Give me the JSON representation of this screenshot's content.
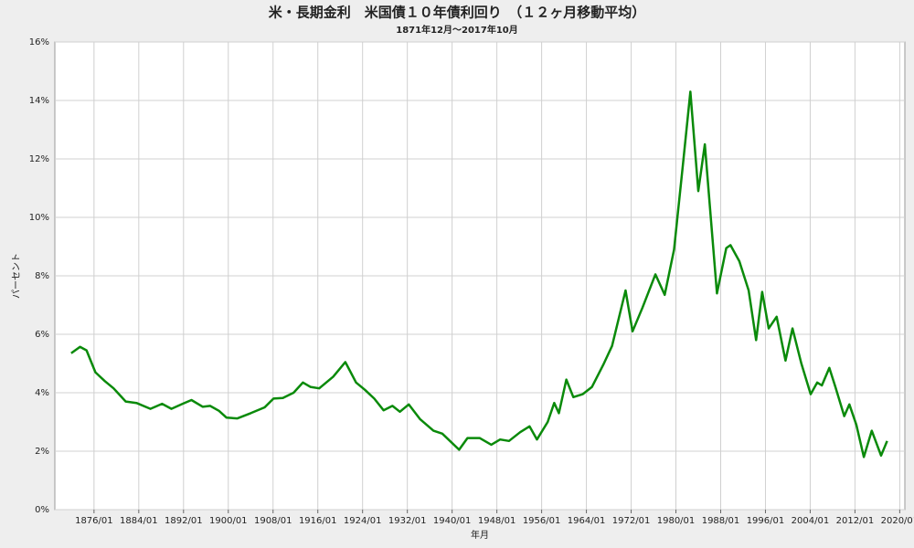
{
  "chart_data": {
    "type": "line",
    "title": "米・長期金利　米国債１０年債利回り　（１２ヶ月移動平均）",
    "subtitle": "1871年12月～2017年10月",
    "x_label": "年月",
    "y_label": "パーセント",
    "color": "#0a8a0a",
    "grid": true,
    "x": [
      "1871/12",
      "1873/07",
      "1874/09",
      "1876/04",
      "1877/12",
      "1879/07",
      "1881/09",
      "1883/08",
      "1886/02",
      "1888/03",
      "1889/11",
      "1891/11",
      "1893/06",
      "1895/06",
      "1896/10",
      "1898/05",
      "1899/09",
      "1901/08",
      "1904/01",
      "1906/07",
      "1908/02",
      "1909/10",
      "1911/09",
      "1913/05",
      "1914/09",
      "1916/04",
      "1918/10",
      "1920/12",
      "1922/11",
      "1924/06",
      "1926/02",
      "1927/10",
      "1929/05",
      "1930/09",
      "1932/04",
      "1934/04",
      "1936/09",
      "1938/04",
      "1941/04",
      "1942/10",
      "1944/12",
      "1947/01",
      "1948/08",
      "1950/03",
      "1952/03",
      "1953/11",
      "1955/03",
      "1957/02",
      "1958/04",
      "1959/02",
      "1960/06",
      "1961/09",
      "1963/05",
      "1965/01",
      "1967/01",
      "1968/08",
      "1971/01",
      "1972/04",
      "1974/01",
      "1976/05",
      "1978/01",
      "1979/09",
      "1981/04",
      "1982/08",
      "1984/01",
      "1985/03",
      "1987/05",
      "1989/01",
      "1989/10",
      "1991/05",
      "1993/01",
      "1994/05",
      "1995/06",
      "1996/08",
      "1998/01",
      "1999/08",
      "2000/11",
      "2002/06",
      "2004/02",
      "2005/04",
      "2006/02",
      "2007/06",
      "2008/07",
      "2010/02",
      "2011/01",
      "2012/04",
      "2013/08",
      "2015/01",
      "2016/09",
      "2017/10"
    ],
    "values": [
      5.35,
      5.57,
      5.45,
      4.7,
      4.4,
      4.15,
      3.7,
      3.65,
      3.45,
      3.62,
      3.45,
      3.62,
      3.75,
      3.52,
      3.55,
      3.38,
      3.15,
      3.12,
      3.3,
      3.5,
      3.8,
      3.82,
      4.0,
      4.35,
      4.2,
      4.15,
      4.55,
      5.05,
      4.35,
      4.1,
      3.8,
      3.4,
      3.55,
      3.35,
      3.6,
      3.1,
      2.7,
      2.6,
      2.05,
      2.45,
      2.45,
      2.22,
      2.4,
      2.35,
      2.65,
      2.85,
      2.4,
      3.0,
      3.65,
      3.3,
      4.45,
      3.85,
      3.95,
      4.2,
      4.95,
      5.6,
      7.5,
      6.1,
      6.9,
      8.05,
      7.35,
      8.9,
      11.8,
      14.3,
      10.9,
      12.5,
      7.4,
      8.95,
      9.05,
      8.5,
      7.5,
      5.8,
      7.45,
      6.2,
      6.6,
      5.1,
      6.2,
      5.0,
      3.95,
      4.35,
      4.25,
      4.85,
      4.2,
      3.2,
      3.6,
      2.9,
      1.8,
      2.7,
      1.85,
      2.35
    ],
    "xlim": [
      "1869/01",
      "2020/12"
    ],
    "xticks": [
      "1876/01",
      "1884/01",
      "1892/01",
      "1900/01",
      "1908/01",
      "1916/01",
      "1924/01",
      "1932/01",
      "1940/01",
      "1948/01",
      "1956/01",
      "1964/01",
      "1972/01",
      "1980/01",
      "1988/01",
      "1996/01",
      "2004/01",
      "2012/01",
      "2020/01"
    ],
    "ylim": [
      0,
      16
    ],
    "yticks": [
      {
        "value": 0,
        "label": "0%"
      },
      {
        "value": 2,
        "label": "2%"
      },
      {
        "value": 4,
        "label": "4%"
      },
      {
        "value": 6,
        "label": "6%"
      },
      {
        "value": 8,
        "label": "8%"
      },
      {
        "value": 10,
        "label": "10%"
      },
      {
        "value": 12,
        "label": "12%"
      },
      {
        "value": 14,
        "label": "14%"
      },
      {
        "value": 16,
        "label": "16%"
      }
    ]
  }
}
